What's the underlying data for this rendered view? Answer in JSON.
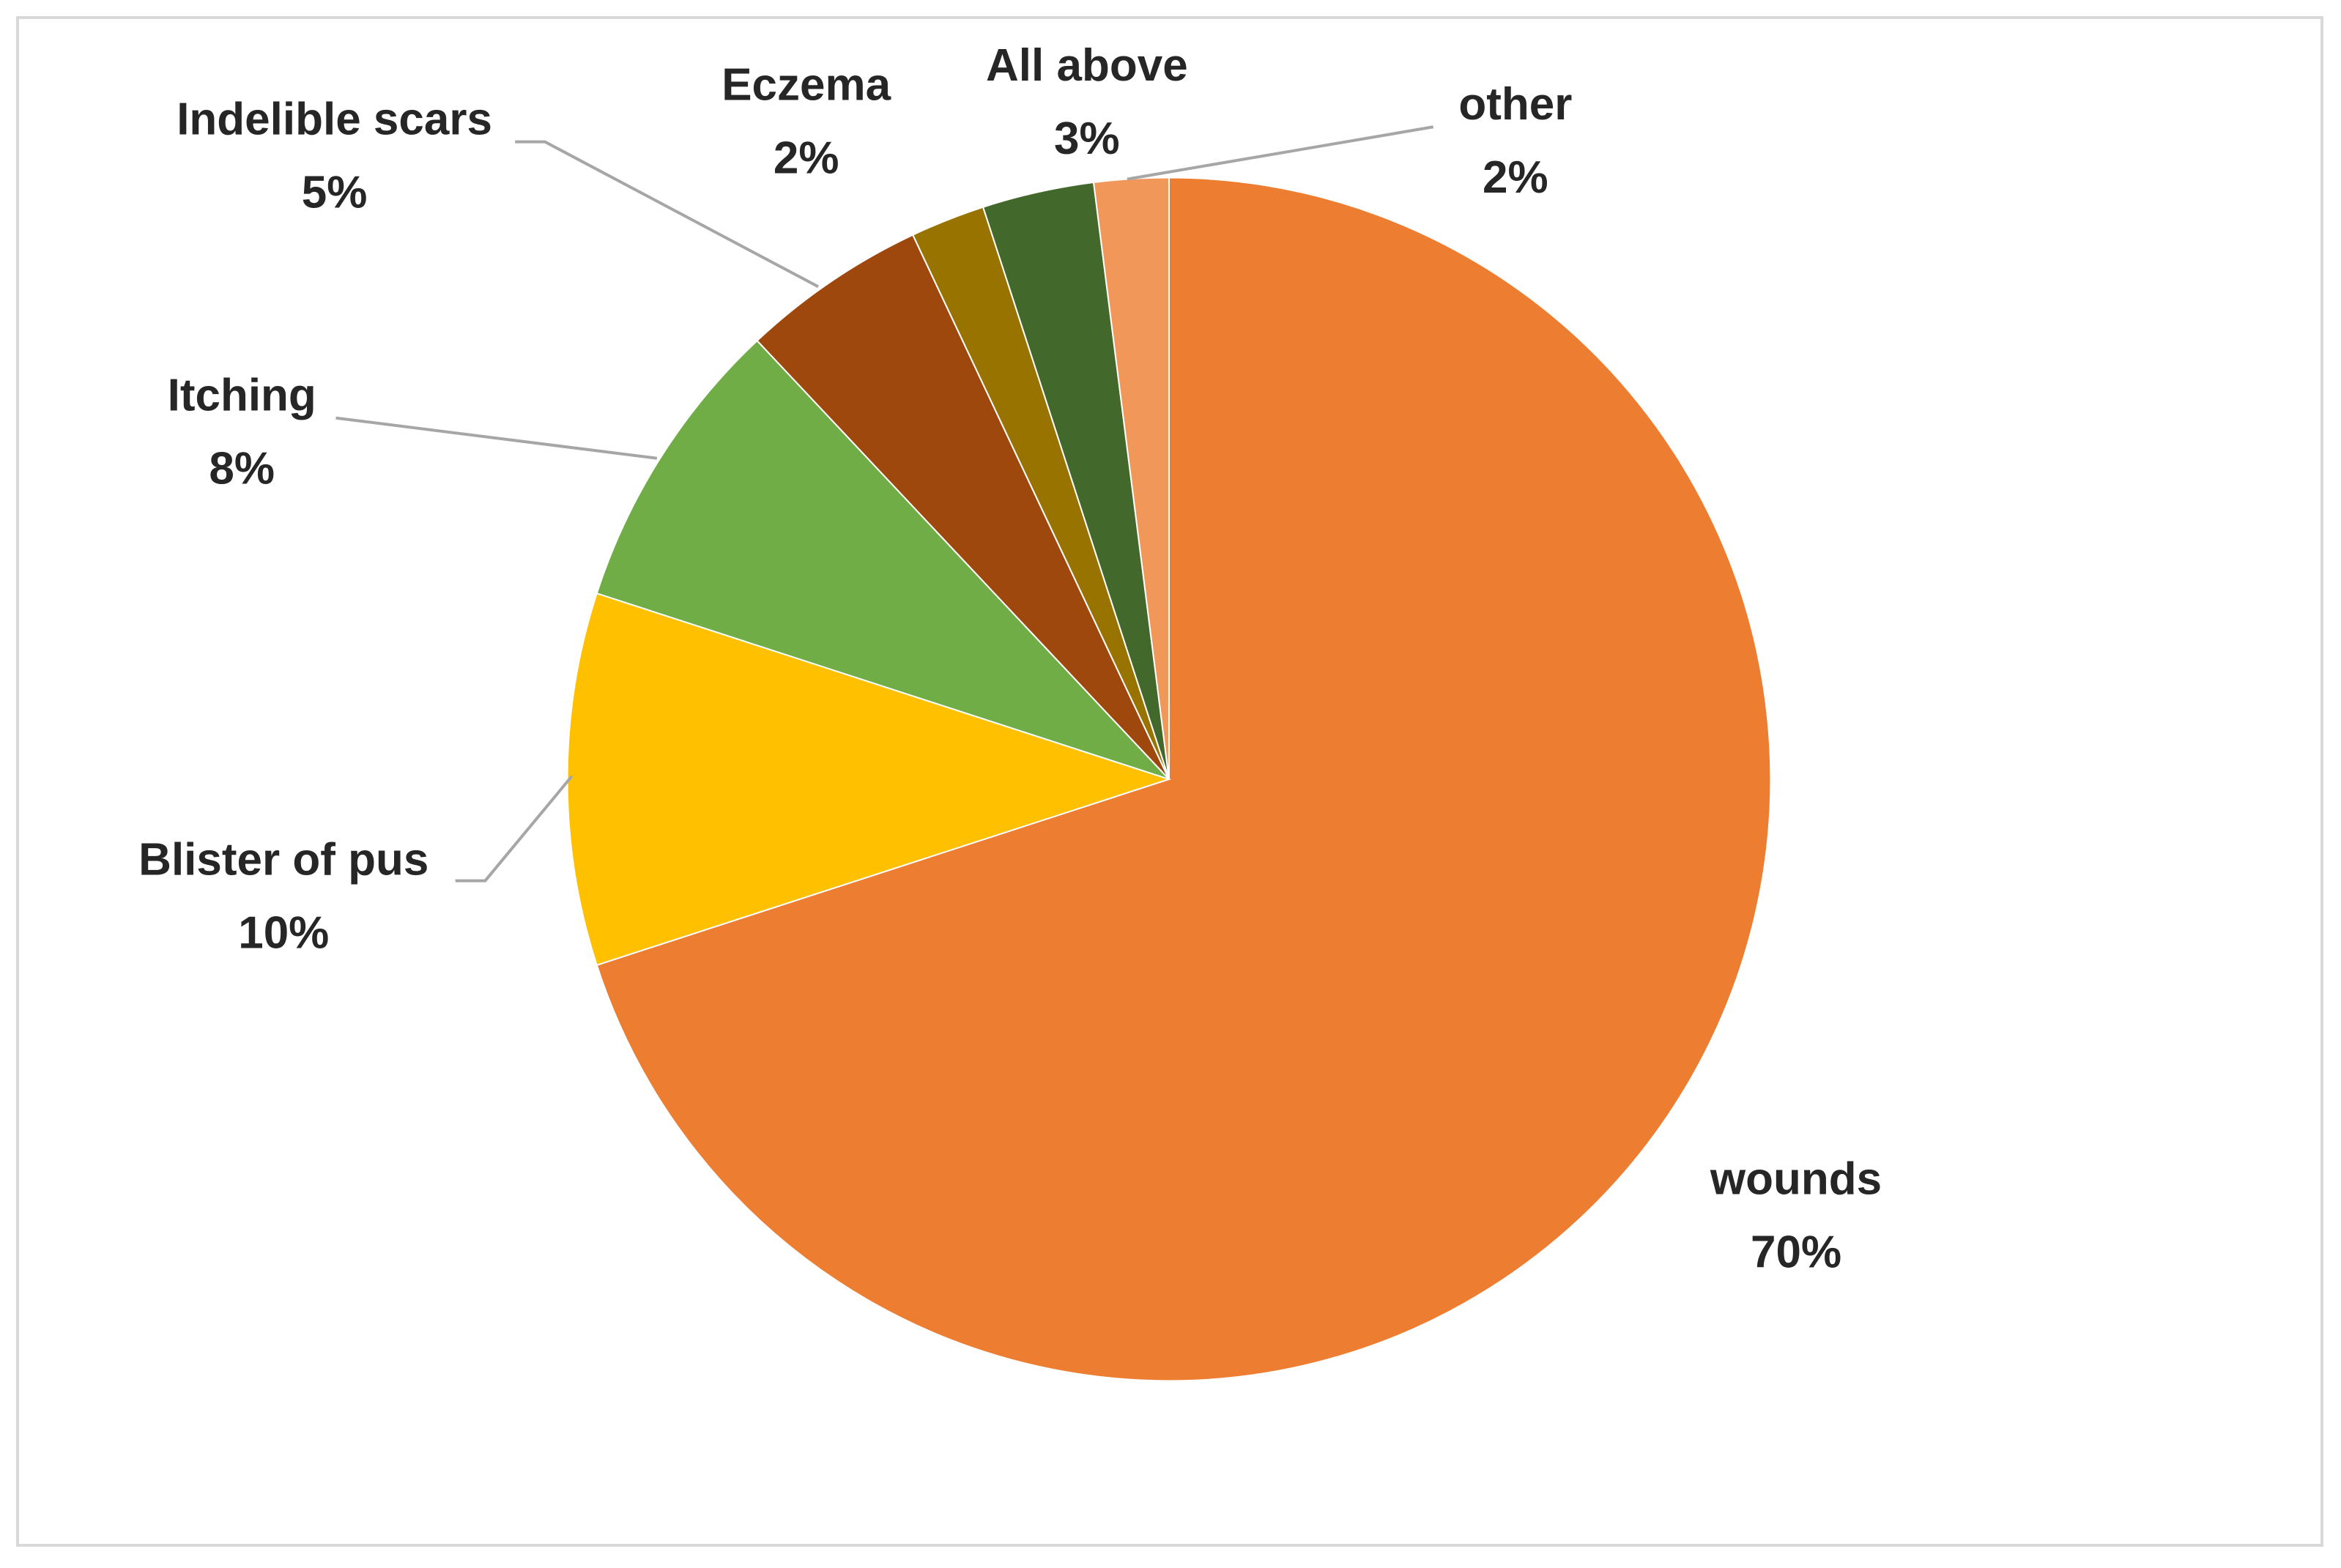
{
  "chart_data": {
    "type": "pie",
    "categories": [
      "wounds",
      "Blister of pus",
      "Itching",
      "Indelible scars",
      "Eczema",
      "All above",
      "other"
    ],
    "values": [
      70,
      10,
      8,
      5,
      2,
      3,
      2
    ],
    "value_labels": [
      "70%",
      "10%",
      "8%",
      "5%",
      "2%",
      "3%",
      "2%"
    ],
    "colors": [
      "#ED7D31",
      "#FFC000",
      "#70AD47",
      "#9E480E",
      "#997300",
      "#43682B",
      "#F1975A"
    ]
  }
}
